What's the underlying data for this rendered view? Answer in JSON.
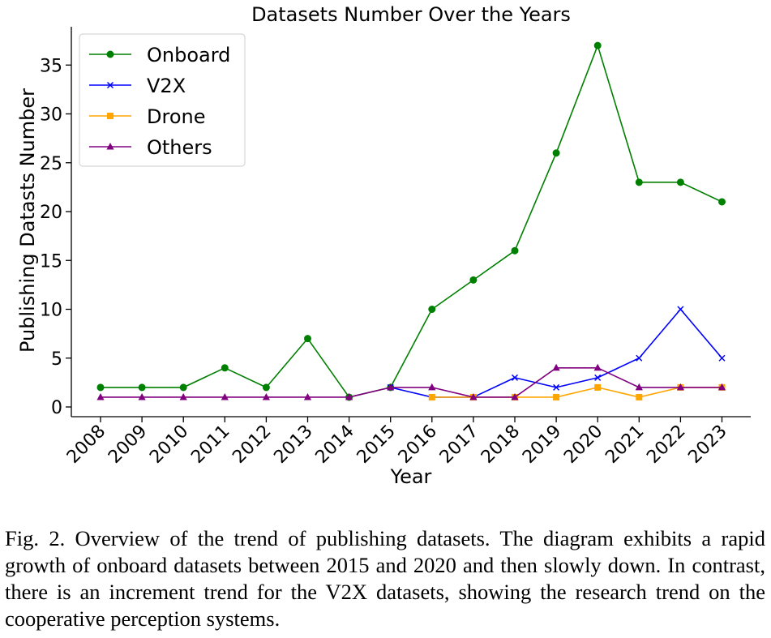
{
  "chart_data": {
    "type": "line",
    "title": "Datasets Number Over the Years",
    "xlabel": "Year",
    "ylabel": "Publishing Datasts Number",
    "ylim": [
      -1,
      38.8
    ],
    "yticks": [
      0,
      5,
      10,
      15,
      20,
      25,
      30,
      35
    ],
    "grid": false,
    "legend_position": "top-left",
    "categories": [
      "2008",
      "2009",
      "2010",
      "2011",
      "2012",
      "2013",
      "2014",
      "2015",
      "2016",
      "2017",
      "2018",
      "2019",
      "2020",
      "2021",
      "2022",
      "2023"
    ],
    "series": [
      {
        "name": "Onboard",
        "color": "#008000",
        "marker": "circle",
        "values": [
          2,
          2,
          2,
          4,
          2,
          7,
          1,
          2,
          10,
          13,
          16,
          26,
          37,
          23,
          23,
          21
        ]
      },
      {
        "name": "V2X",
        "color": "#0000ff",
        "marker": "x",
        "values": [
          null,
          null,
          null,
          null,
          null,
          null,
          null,
          2,
          1,
          1,
          3,
          2,
          3,
          5,
          10,
          5
        ]
      },
      {
        "name": "Drone",
        "color": "#ffa500",
        "marker": "square",
        "values": [
          null,
          null,
          null,
          null,
          null,
          null,
          null,
          null,
          1,
          1,
          1,
          1,
          2,
          1,
          2,
          2
        ]
      },
      {
        "name": "Others",
        "color": "#800080",
        "marker": "triangle",
        "values": [
          1,
          1,
          1,
          1,
          1,
          1,
          1,
          2,
          2,
          1,
          1,
          4,
          4,
          2,
          2,
          2
        ]
      }
    ]
  },
  "caption": {
    "text": "Fig. 2.  Overview of the trend of publishing datasets. The diagram exhibits a rapid growth of onboard datasets between 2015 and 2020 and then slowly down. In contrast, there is an increment trend for the V2X datasets, showing the research trend on the cooperative perception systems."
  }
}
